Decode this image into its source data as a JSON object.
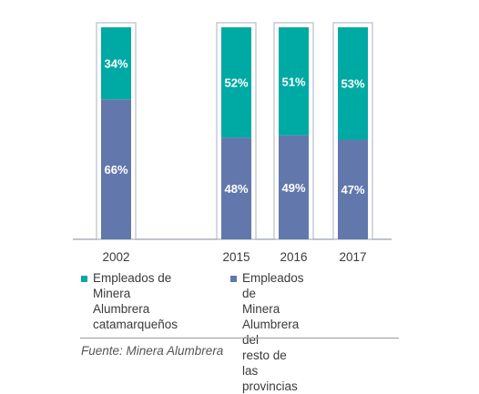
{
  "chart_data": {
    "type": "bar",
    "stacked": true,
    "unit": "%",
    "categories": [
      "2002",
      "2015",
      "2016",
      "2017"
    ],
    "series": [
      {
        "name": "Empleados de\nMinera Alumbrera del\nresto de las provincias",
        "color": "#6278ac",
        "values": [
          66,
          48,
          49,
          47
        ],
        "labels": [
          "66%",
          "48%",
          "49%",
          "47%"
        ]
      },
      {
        "name": "Empleados de\nMinera Alumbrera\ncatamarqueños",
        "color": "#00aaa4",
        "values": [
          34,
          52,
          51,
          53
        ],
        "labels": [
          "34%",
          "52%",
          "51%",
          "53%"
        ]
      }
    ],
    "ylim": [
      0,
      100
    ],
    "legend_position": "bottom",
    "grid": false
  },
  "legend": {
    "item1": "Empleados de\nMinera Alumbrera\ncatamarqueños",
    "item2": "Empleados de\nMinera Alumbrera del\nresto de las provincias"
  },
  "source": "Fuente: Minera Alumbrera",
  "colors": {
    "teal": "#00aaa4",
    "blue": "#6278ac",
    "frame": "#c5ccd6",
    "axis": "#9aa4b0",
    "text": "#3a3a3a"
  }
}
